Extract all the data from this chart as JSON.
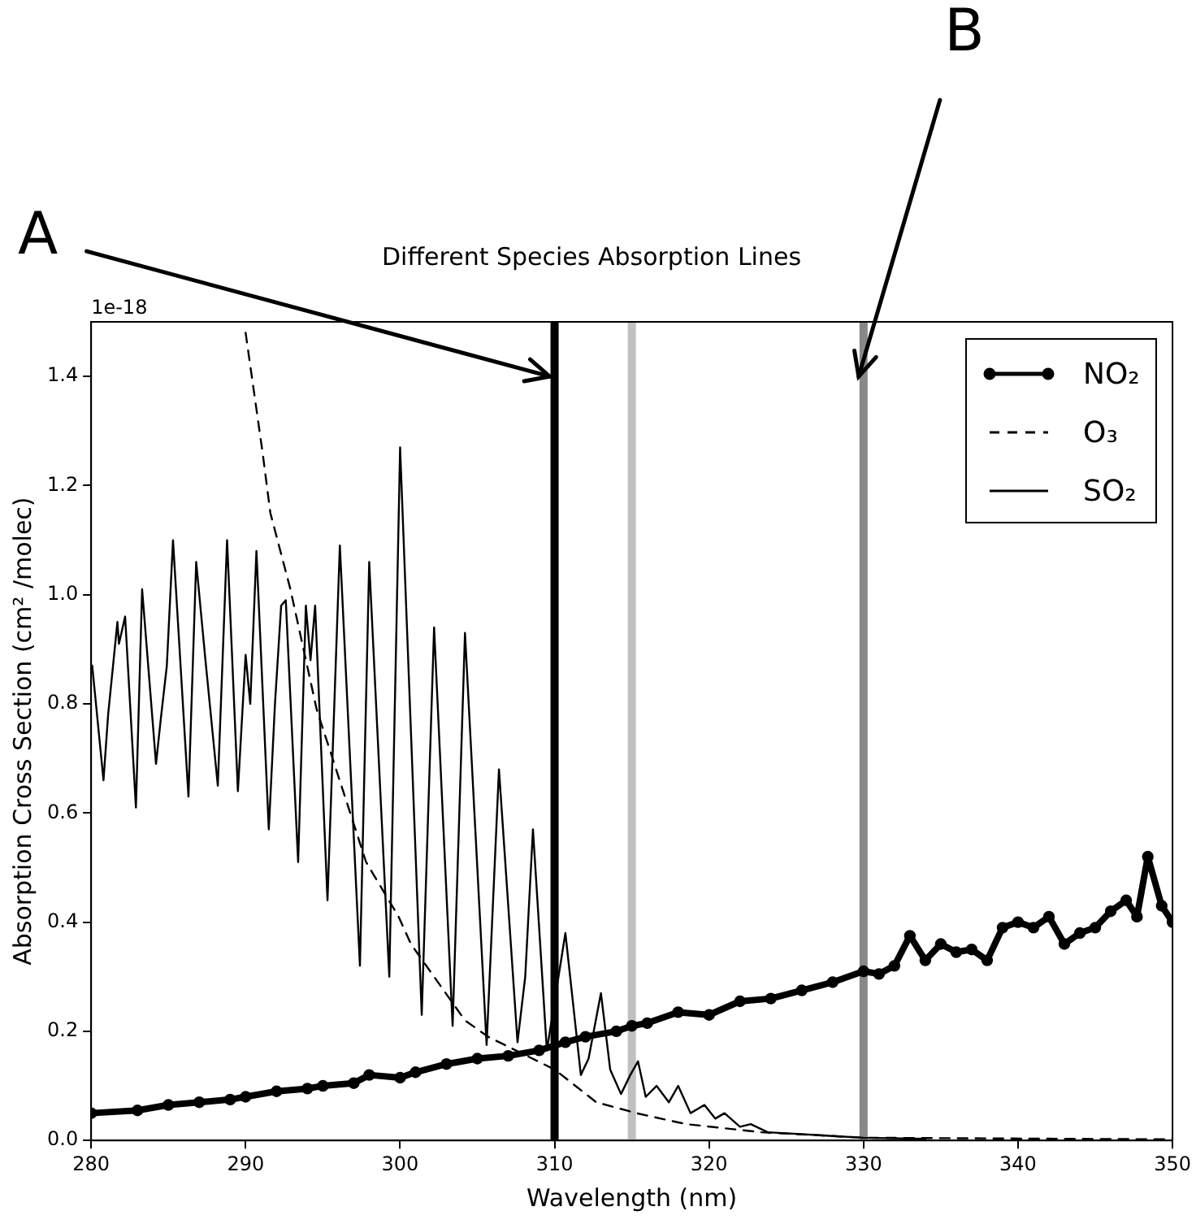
{
  "chart_data": {
    "type": "line",
    "title": "Different Species Absorption Lines",
    "xlabel": "Wavelength (nm)",
    "ylabel": "Absorption Cross Section (cm² /molec)",
    "xlim": [
      280,
      350
    ],
    "xticks": [
      280,
      290,
      300,
      310,
      320,
      330,
      340,
      350
    ],
    "ylim": [
      0,
      1.5
    ],
    "yticks": [
      {
        "value": 0,
        "label": "0.0"
      },
      0.2,
      0.4,
      0.6,
      0.8,
      {
        "value": 1,
        "label": "1.0"
      },
      1.2,
      1.4
    ],
    "legend": "top right",
    "ref_lines": [
      {
        "axis": "x",
        "value": 310,
        "color": "#000000"
      },
      {
        "axis": "x",
        "value": 315,
        "color": "#c0c0c0"
      },
      {
        "axis": "x",
        "value": 330,
        "color": "#888888"
      }
    ],
    "annotations": [
      "1e-18",
      {
        "text": "A",
        "x": 310,
        "y": 1.4
      },
      {
        "text": "B",
        "x": 330,
        "y": 1.4
      }
    ],
    "series": [
      {
        "name": "NO₂",
        "color": "#000000",
        "marker": "circle",
        "x": [
          280,
          283,
          285,
          287,
          289,
          290,
          292,
          294,
          295,
          297,
          298,
          300,
          301,
          303,
          305,
          307,
          309,
          310.7,
          312,
          314,
          315,
          316,
          318,
          320,
          322,
          324,
          326,
          328,
          330,
          331,
          332,
          333,
          334,
          335,
          336,
          337,
          338,
          339,
          340,
          341,
          342,
          343,
          344,
          345,
          346,
          347,
          347.7,
          348.4,
          349.3,
          350
        ],
        "values": [
          0.05,
          0.055,
          0.065,
          0.07,
          0.075,
          0.08,
          0.09,
          0.095,
          0.1,
          0.105,
          0.12,
          0.115,
          0.125,
          0.14,
          0.15,
          0.155,
          0.165,
          0.18,
          0.19,
          0.2,
          0.21,
          0.215,
          0.235,
          0.23,
          0.255,
          0.26,
          0.275,
          0.29,
          0.31,
          0.305,
          0.32,
          0.375,
          0.33,
          0.36,
          0.345,
          0.35,
          0.33,
          0.39,
          0.4,
          0.39,
          0.41,
          0.36,
          0.38,
          0.39,
          0.42,
          0.44,
          0.41,
          0.52,
          0.43,
          0.4
        ]
      },
      {
        "name": "O₃",
        "color": "#000000",
        "line_style": "dashed",
        "x": [
          290,
          291.1,
          291.6,
          292.9,
          294.6,
          297.8,
          299.9,
          300.7,
          304.2,
          305.7,
          310,
          312.7,
          315.3,
          318.5,
          323.4,
          330,
          350
        ],
        "values": [
          1.48,
          1.26,
          1.15,
          1.01,
          0.79,
          0.51,
          0.41,
          0.36,
          0.22,
          0.19,
          0.13,
          0.07,
          0.05,
          0.03,
          0.015,
          0.005,
          0.002
        ]
      },
      {
        "name": "SO₂",
        "color": "#000000",
        "line_style": "solid",
        "x": [
          280.07,
          280.8,
          281.1,
          281.7,
          281.8,
          282.2,
          282.9,
          283.3,
          284.2,
          284.5,
          284.9,
          285.3,
          286.3,
          286.8,
          287.4,
          288.2,
          288.8,
          289.5,
          290,
          290.3,
          290.7,
          291.5,
          291.9,
          292.3,
          292.6,
          293.4,
          293.9,
          294.2,
          294.5,
          295.3,
          296.1,
          297.4,
          298,
          299.3,
          300,
          301.4,
          302.2,
          303.4,
          304.2,
          305.6,
          306.4,
          307.6,
          308.1,
          308.6,
          309.5,
          310.7,
          311.7,
          312.2,
          313,
          313.6,
          314.3,
          314.9,
          315.4,
          315.9,
          316.6,
          317.4,
          318,
          318.8,
          319.7,
          320.4,
          321,
          322,
          322.7,
          323.8,
          330,
          334
        ],
        "values": [
          0.87,
          0.66,
          0.78,
          0.95,
          0.91,
          0.96,
          0.61,
          1.01,
          0.69,
          0.77,
          0.87,
          1.1,
          0.63,
          1.06,
          0.88,
          0.65,
          1.1,
          0.64,
          0.89,
          0.8,
          1.08,
          0.57,
          0.8,
          0.98,
          0.99,
          0.51,
          0.98,
          0.88,
          0.98,
          0.44,
          1.09,
          0.32,
          1.06,
          0.3,
          1.27,
          0.23,
          0.94,
          0.21,
          0.93,
          0.175,
          0.68,
          0.18,
          0.3,
          0.57,
          0.165,
          0.38,
          0.12,
          0.15,
          0.27,
          0.13,
          0.085,
          0.12,
          0.145,
          0.08,
          0.1,
          0.07,
          0.1,
          0.05,
          0.065,
          0.04,
          0.05,
          0.025,
          0.03,
          0.015,
          0.005,
          0.003
        ]
      }
    ]
  }
}
